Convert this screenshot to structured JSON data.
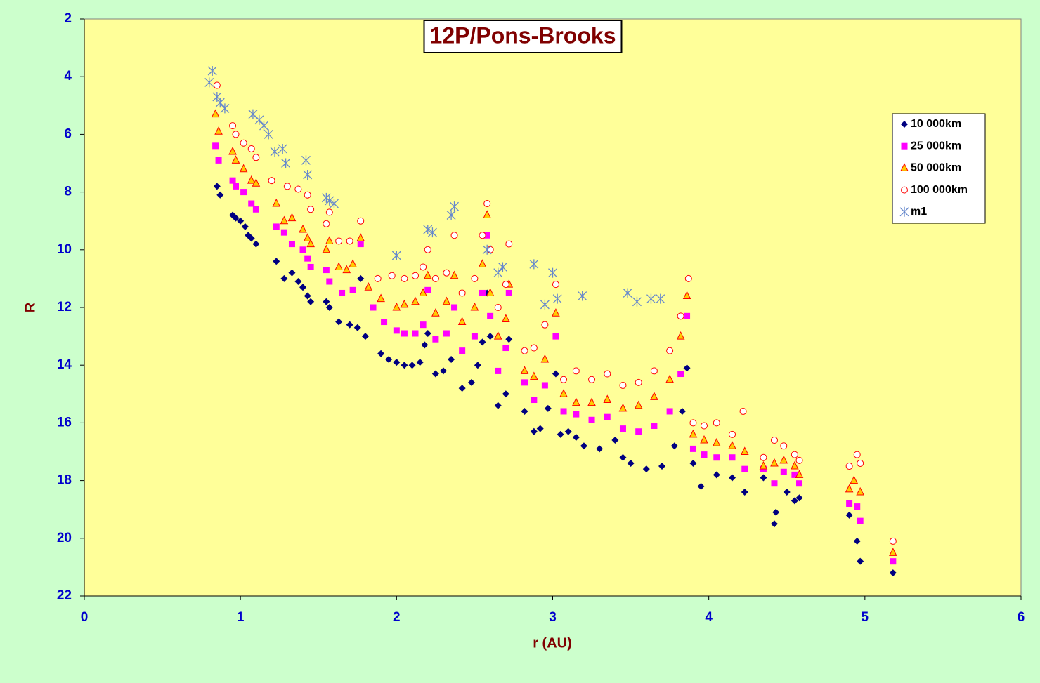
{
  "chart_data": {
    "type": "scatter",
    "title": "12P/Pons-Brooks",
    "x_label": "r (AU)",
    "y_label": "R",
    "xlim": [
      0,
      6
    ],
    "xticks": [
      0,
      1,
      2,
      3,
      4,
      5,
      6
    ],
    "ylim": [
      2,
      22
    ],
    "y_inverted": true,
    "yticks": [
      2,
      4,
      6,
      8,
      10,
      12,
      14,
      16,
      18,
      20,
      22
    ],
    "legend": "upper right",
    "series": [
      {
        "name": "10 000km",
        "color": "#000080",
        "marker": "diamond",
        "x": [
          0.85,
          0.87,
          0.95,
          0.97,
          1.0,
          1.03,
          1.05,
          1.07,
          1.1,
          1.23,
          1.28,
          1.33,
          1.37,
          1.4,
          1.43,
          1.45,
          1.55,
          1.57,
          1.63,
          1.7,
          1.75,
          1.77,
          1.8,
          1.9,
          1.95,
          2.0,
          2.05,
          2.1,
          2.15,
          2.18,
          2.2,
          2.25,
          2.3,
          2.35,
          2.42,
          2.48,
          2.52,
          2.55,
          2.58,
          2.6,
          2.65,
          2.7,
          2.72,
          2.82,
          2.88,
          2.92,
          2.97,
          3.02,
          3.05,
          3.1,
          3.15,
          3.2,
          3.3,
          3.4,
          3.45,
          3.5,
          3.6,
          3.7,
          3.78,
          3.83,
          3.86,
          3.9,
          3.95,
          4.05,
          4.15,
          4.23,
          4.35,
          4.42,
          4.43,
          4.5,
          4.55,
          4.58,
          4.9,
          4.95,
          4.97,
          5.18
        ],
        "values": [
          7.8,
          8.1,
          8.8,
          8.9,
          9.0,
          9.2,
          9.5,
          9.6,
          9.8,
          10.4,
          11.0,
          10.8,
          11.1,
          11.3,
          11.6,
          11.8,
          11.8,
          12.0,
          12.5,
          12.6,
          12.7,
          11.0,
          13.0,
          13.6,
          13.8,
          13.9,
          14.0,
          14.0,
          13.9,
          13.3,
          12.9,
          14.3,
          14.2,
          13.8,
          14.8,
          14.6,
          14.0,
          13.2,
          11.5,
          13.0,
          15.4,
          15.0,
          13.1,
          15.6,
          16.3,
          16.2,
          15.5,
          14.3,
          16.4,
          16.3,
          16.5,
          16.8,
          16.9,
          16.6,
          17.2,
          17.4,
          17.6,
          17.5,
          16.8,
          15.6,
          14.1,
          17.4,
          18.2,
          17.8,
          17.9,
          18.4,
          17.9,
          19.5,
          19.1,
          18.4,
          18.7,
          18.6,
          19.2,
          20.1,
          20.8,
          21.2
        ]
      },
      {
        "name": "25 000km",
        "color": "#ff00ff",
        "marker": "square",
        "x": [
          0.84,
          0.86,
          0.95,
          0.97,
          1.02,
          1.07,
          1.1,
          1.23,
          1.28,
          1.33,
          1.4,
          1.43,
          1.45,
          1.55,
          1.57,
          1.65,
          1.72,
          1.77,
          1.85,
          1.92,
          2.0,
          2.05,
          2.12,
          2.17,
          2.2,
          2.25,
          2.32,
          2.37,
          2.42,
          2.5,
          2.55,
          2.58,
          2.6,
          2.65,
          2.7,
          2.72,
          2.82,
          2.88,
          2.95,
          3.02,
          3.07,
          3.15,
          3.25,
          3.35,
          3.45,
          3.55,
          3.65,
          3.75,
          3.82,
          3.86,
          3.9,
          3.97,
          4.05,
          4.15,
          4.23,
          4.35,
          4.42,
          4.48,
          4.55,
          4.58,
          4.9,
          4.95,
          4.97,
          5.18
        ],
        "values": [
          6.4,
          6.9,
          7.6,
          7.8,
          8.0,
          8.4,
          8.6,
          9.2,
          9.4,
          9.8,
          10.0,
          10.3,
          10.6,
          10.7,
          11.1,
          11.5,
          11.4,
          9.8,
          12.0,
          12.5,
          12.8,
          12.9,
          12.9,
          12.6,
          11.4,
          13.1,
          12.9,
          12.0,
          13.5,
          13.0,
          11.5,
          9.5,
          12.3,
          14.2,
          13.4,
          11.5,
          14.6,
          15.2,
          14.7,
          13.0,
          15.6,
          15.7,
          15.9,
          15.8,
          16.2,
          16.3,
          16.1,
          15.6,
          14.3,
          12.3,
          16.9,
          17.1,
          17.2,
          17.2,
          17.6,
          17.6,
          18.1,
          17.7,
          17.8,
          18.1,
          18.8,
          18.9,
          19.4,
          20.8
        ]
      },
      {
        "name": "50 000km",
        "color": "#ffcc00",
        "marker": "triangle",
        "x": [
          0.84,
          0.86,
          0.95,
          0.97,
          1.02,
          1.07,
          1.1,
          1.23,
          1.28,
          1.33,
          1.4,
          1.43,
          1.45,
          1.55,
          1.57,
          1.63,
          1.68,
          1.72,
          1.77,
          1.82,
          1.9,
          2.0,
          2.05,
          2.12,
          2.17,
          2.2,
          2.25,
          2.32,
          2.37,
          2.42,
          2.5,
          2.55,
          2.58,
          2.6,
          2.65,
          2.7,
          2.72,
          2.82,
          2.88,
          2.95,
          3.02,
          3.07,
          3.15,
          3.25,
          3.35,
          3.45,
          3.55,
          3.65,
          3.75,
          3.82,
          3.86,
          3.9,
          3.97,
          4.05,
          4.15,
          4.23,
          4.35,
          4.42,
          4.48,
          4.55,
          4.58,
          4.9,
          4.93,
          4.97,
          5.18
        ],
        "values": [
          5.3,
          5.9,
          6.6,
          6.9,
          7.2,
          7.6,
          7.7,
          8.4,
          9.0,
          8.9,
          9.3,
          9.6,
          9.8,
          10.0,
          9.7,
          10.6,
          10.7,
          10.5,
          9.6,
          11.3,
          11.7,
          12.0,
          11.9,
          11.8,
          11.5,
          10.9,
          12.2,
          11.8,
          10.9,
          12.5,
          12.0,
          10.5,
          8.8,
          11.5,
          13.0,
          12.4,
          11.2,
          14.2,
          14.4,
          13.8,
          12.2,
          15.0,
          15.3,
          15.3,
          15.2,
          15.5,
          15.4,
          15.1,
          14.5,
          13.0,
          11.6,
          16.4,
          16.6,
          16.7,
          16.8,
          17.0,
          17.5,
          17.4,
          17.3,
          17.5,
          17.8,
          18.3,
          18.0,
          18.4,
          20.5
        ]
      },
      {
        "name": "100 000km",
        "color": "#ff0000",
        "marker": "circle",
        "x": [
          0.85,
          0.95,
          0.97,
          1.02,
          1.07,
          1.1,
          1.2,
          1.3,
          1.37,
          1.43,
          1.45,
          1.55,
          1.57,
          1.63,
          1.7,
          1.77,
          1.88,
          1.97,
          2.05,
          2.12,
          2.17,
          2.2,
          2.25,
          2.32,
          2.37,
          2.42,
          2.5,
          2.55,
          2.58,
          2.6,
          2.65,
          2.7,
          2.72,
          2.82,
          2.88,
          2.95,
          3.02,
          3.07,
          3.15,
          3.25,
          3.35,
          3.45,
          3.55,
          3.65,
          3.75,
          3.82,
          3.87,
          3.9,
          3.97,
          4.05,
          4.15,
          4.22,
          4.35,
          4.42,
          4.48,
          4.55,
          4.58,
          4.9,
          4.95,
          4.97,
          5.18
        ],
        "values": [
          4.3,
          5.7,
          6.0,
          6.3,
          6.5,
          6.8,
          7.6,
          7.8,
          7.9,
          8.1,
          8.6,
          9.1,
          8.7,
          9.7,
          9.7,
          9.0,
          11.0,
          10.9,
          11.0,
          10.9,
          10.6,
          10.0,
          11.0,
          10.8,
          9.5,
          11.5,
          11.0,
          9.5,
          8.4,
          10.0,
          12.0,
          11.2,
          9.8,
          13.5,
          13.4,
          12.6,
          11.2,
          14.5,
          14.2,
          14.5,
          14.3,
          14.7,
          14.6,
          14.2,
          13.5,
          12.3,
          11.0,
          16.0,
          16.1,
          16.0,
          16.4,
          15.6,
          17.2,
          16.6,
          16.8,
          17.1,
          17.3,
          17.5,
          17.1,
          17.4,
          20.1
        ]
      },
      {
        "name": "m1",
        "color": "#6688cc",
        "marker": "star",
        "x": [
          0.8,
          0.82,
          0.85,
          0.87,
          0.9,
          1.08,
          1.12,
          1.15,
          1.18,
          1.22,
          1.27,
          1.29,
          1.42,
          1.43,
          1.55,
          1.57,
          1.6,
          2.0,
          2.2,
          2.23,
          2.35,
          2.37,
          2.58,
          2.65,
          2.68,
          2.88,
          2.95,
          3.0,
          3.03,
          3.19,
          3.48,
          3.54,
          3.63,
          3.69
        ],
        "values": [
          4.2,
          3.8,
          4.7,
          4.9,
          5.1,
          5.3,
          5.5,
          5.7,
          6.0,
          6.6,
          6.5,
          7.0,
          6.9,
          7.4,
          8.2,
          8.3,
          8.4,
          10.2,
          9.3,
          9.4,
          8.8,
          8.5,
          10.0,
          10.8,
          10.6,
          10.5,
          11.9,
          10.8,
          11.7,
          11.6,
          11.5,
          11.8,
          11.7,
          11.7
        ]
      }
    ]
  }
}
